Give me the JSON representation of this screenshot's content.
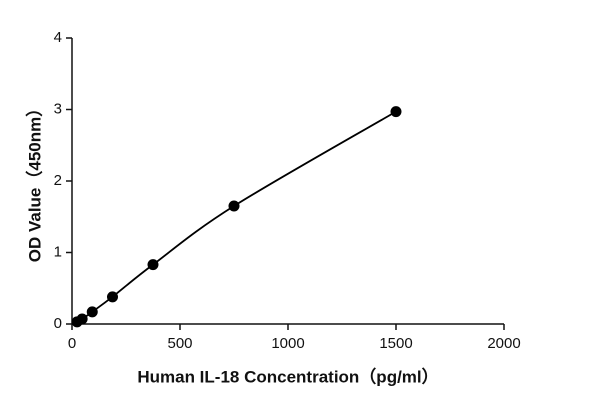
{
  "chart_data": {
    "type": "scatter",
    "xlabel": "Human IL-18 Concentration（pg/ml）",
    "ylabel": "OD Value（450nm）",
    "x": [
      23.4,
      46.9,
      93.75,
      187.5,
      375,
      750,
      1500
    ],
    "series": [
      {
        "color": "#000000",
        "values": [
          0.03,
          0.07,
          0.17,
          0.38,
          0.83,
          1.65,
          2.97
        ]
      }
    ],
    "fit_line": true,
    "xlim": [
      0,
      2000
    ],
    "xticks": [
      0,
      500,
      1000,
      1500,
      2000
    ],
    "ylim": [
      0,
      4
    ],
    "yticks": [
      0,
      1,
      2,
      3,
      4
    ],
    "grid": false
  }
}
